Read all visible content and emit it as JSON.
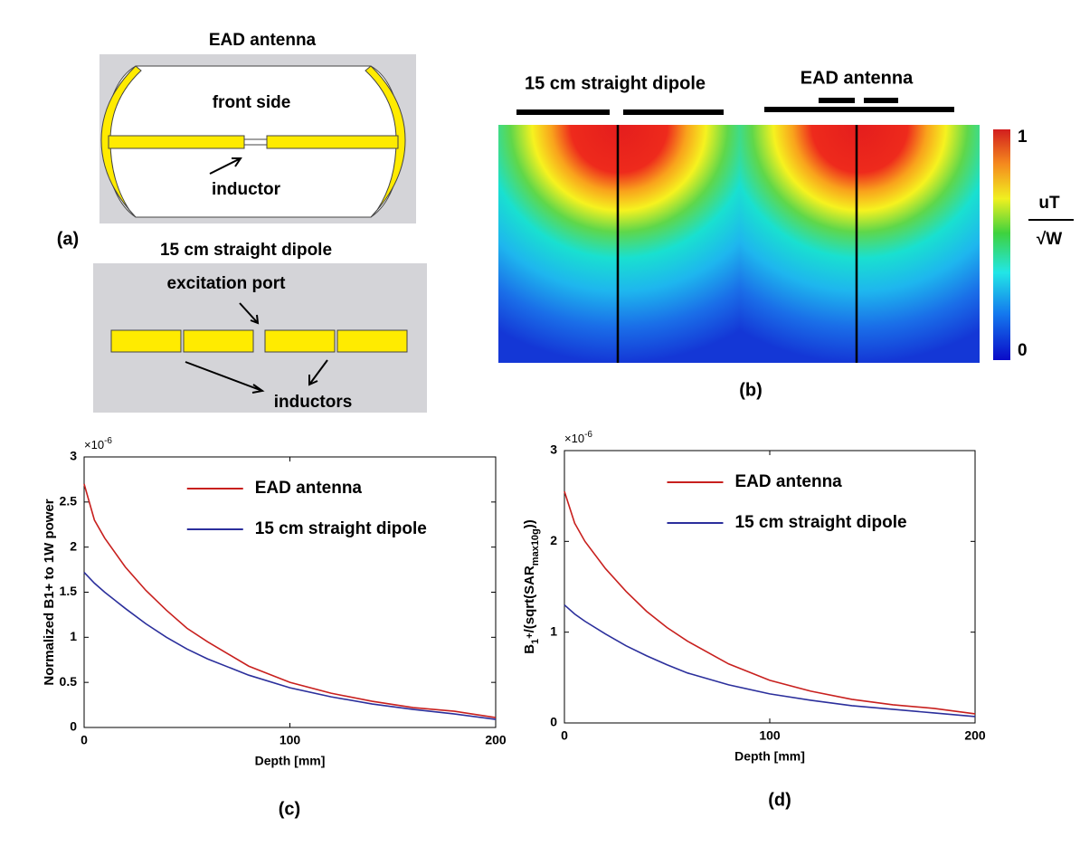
{
  "diagram_a": {
    "label": "(a)",
    "ead_title": "EAD antenna",
    "front": "front side",
    "inductor": "inductor",
    "dipole_title": "15 cm straight dipole",
    "port": "excitation port",
    "inductors": "inductors"
  },
  "heatmap_b": {
    "label": "(b)",
    "left_title": "15 cm straight dipole",
    "right_title": "EAD antenna",
    "colorbar_ticks": [
      1,
      0
    ],
    "unit_num": "uT",
    "unit_den": "√W"
  },
  "chart_data": [
    {
      "type": "line",
      "label": "(c)",
      "x_label": "Depth [mm]",
      "y_label": [
        {
          "text": "Normalized B1+ to 1W power"
        }
      ],
      "y_multiplier": {
        "base": "×10",
        "exp": "-6"
      },
      "x": [
        0,
        5,
        10,
        20,
        30,
        40,
        50,
        60,
        80,
        100,
        120,
        140,
        160,
        180,
        200
      ],
      "series": [
        {
          "name": "EAD antenna",
          "color": "#c8201e",
          "values": [
            2.7,
            2.3,
            2.1,
            1.78,
            1.52,
            1.3,
            1.1,
            0.95,
            0.68,
            0.5,
            0.38,
            0.29,
            0.22,
            0.18,
            0.11
          ]
        },
        {
          "name": "15 cm straight dipole",
          "color": "#2b2f9c",
          "values": [
            1.72,
            1.6,
            1.5,
            1.32,
            1.15,
            1.0,
            0.87,
            0.76,
            0.58,
            0.44,
            0.34,
            0.26,
            0.2,
            0.15,
            0.09
          ]
        }
      ],
      "xlim": [
        0,
        200
      ],
      "xticks": [
        0,
        100,
        200
      ],
      "ylim": [
        0,
        3
      ],
      "yticks": [
        0,
        0.5,
        1,
        1.5,
        2,
        2.5,
        3
      ],
      "legend_loc": "north"
    },
    {
      "type": "line",
      "label": "(d)",
      "x_label": "Depth [mm]",
      "y_label": [
        {
          "text": "B"
        },
        {
          "text": "1",
          "shift": "sub"
        },
        {
          "text": "+",
          "shift": "sup"
        },
        {
          "text": "/(sqrt(SAR"
        },
        {
          "text": "max10g",
          "shift": "sub"
        },
        {
          "text": "))"
        }
      ],
      "y_multiplier": {
        "base": "×10",
        "exp": "-6"
      },
      "x": [
        0,
        5,
        10,
        20,
        30,
        40,
        50,
        60,
        80,
        100,
        120,
        140,
        160,
        180,
        200
      ],
      "series": [
        {
          "name": "EAD antenna",
          "color": "#c8201e",
          "values": [
            2.55,
            2.2,
            2.0,
            1.7,
            1.45,
            1.23,
            1.05,
            0.9,
            0.65,
            0.47,
            0.35,
            0.26,
            0.2,
            0.16,
            0.1
          ]
        },
        {
          "name": "15 cm straight dipole",
          "color": "#2b2f9c",
          "values": [
            1.3,
            1.2,
            1.12,
            0.98,
            0.85,
            0.74,
            0.64,
            0.55,
            0.42,
            0.32,
            0.25,
            0.19,
            0.15,
            0.11,
            0.07
          ]
        }
      ],
      "xlim": [
        0,
        200
      ],
      "xticks": [
        0,
        100,
        200
      ],
      "ylim": [
        0,
        3
      ],
      "yticks": [
        0,
        1,
        2,
        3
      ],
      "legend_loc": "north"
    }
  ]
}
